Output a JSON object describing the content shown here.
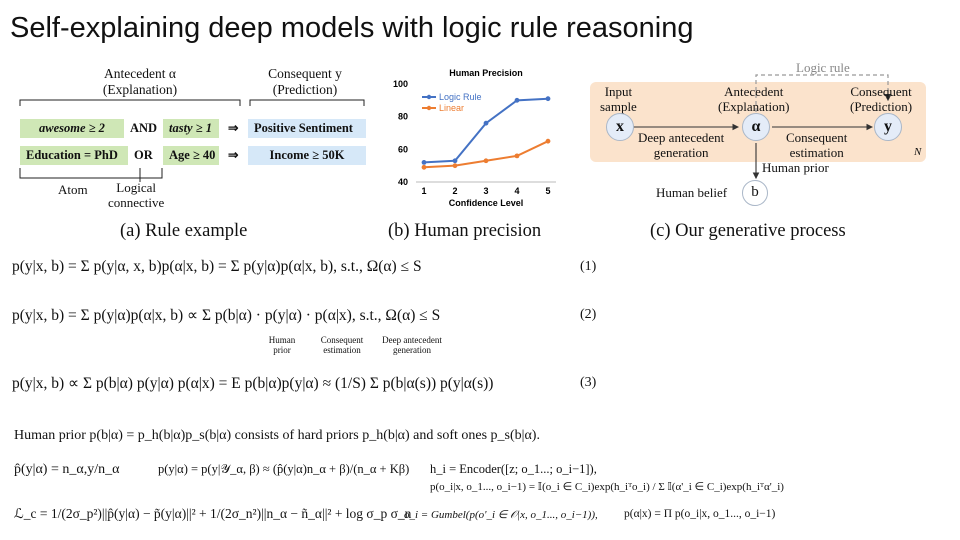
{
  "title": "Self-explaining deep models with logic rule reasoning",
  "rule_example": {
    "antecedent_header": [
      "Antecedent α",
      "(Explanation)"
    ],
    "consequent_header": [
      "Consequent y",
      "(Prediction)"
    ],
    "row1": {
      "atom1": "awesome ≥ 2",
      "connective": "AND",
      "atom2": "tasty ≥ 1",
      "arrow": "⇒",
      "consequent": "Positive Sentiment"
    },
    "row2": {
      "atom1": "Education = PhD",
      "connective": "OR",
      "atom2": "Age ≥ 40",
      "arrow": "⇒",
      "consequent": "Income ≥ 50K"
    },
    "atom_label": "Atom",
    "connective_label": [
      "Logical",
      "connective"
    ],
    "caption": "(a) Rule example"
  },
  "colors": {
    "green": "#cfe7b6",
    "blue_box": "#d6e8f8",
    "orange_bg": "#fbe3cc",
    "logic_rule_line": "#4472c4",
    "linear_line": "#ed7d31"
  },
  "chart_data": {
    "type": "line",
    "title": "Human Precision",
    "xlabel": "Confidence Level",
    "ylabel": "",
    "x": [
      1,
      2,
      3,
      4,
      5
    ],
    "ylim": [
      40,
      100
    ],
    "yticks": [
      40,
      60,
      80,
      100
    ],
    "series": [
      {
        "name": "Logic Rule",
        "values": [
          52,
          53,
          76,
          90,
          91
        ]
      },
      {
        "name": "Linear",
        "values": [
          49,
          50,
          53,
          56,
          65
        ]
      }
    ],
    "legend": "top-left",
    "caption": "(b) Human precision"
  },
  "process": {
    "logic_rule_label": "Logic rule",
    "input_label": [
      "Input",
      "sample"
    ],
    "antecedent_label": [
      "Antecedent",
      "(Explanation)"
    ],
    "consequent_label": [
      "Consequent",
      "(Prediction)"
    ],
    "node_x": "x",
    "node_alpha": "α",
    "node_y": "y",
    "node_b": "b",
    "deep_gen_label": [
      "Deep antecedent",
      "generation"
    ],
    "cons_est_label": [
      "Consequent",
      "estimation"
    ],
    "human_prior_label": "Human prior",
    "human_belief_label": "Human belief",
    "plate_label": "N",
    "caption": "(c) Our generative process"
  },
  "equations": {
    "eq1": "p(y|x, b) = Σ p(y|α, x, b)p(α|x, b) = Σ p(y|α)p(α|x, b),   s.t.,   Ω(α) ≤ S",
    "eq1_num": "(1)",
    "eq2": "p(y|x, b) = Σ p(y|α)p(α|x, b) ∝ Σ p(b|α) · p(y|α) · p(α|x),   s.t.,   Ω(α) ≤ S",
    "eq2_num": "(2)",
    "eq2_under": [
      "Human prior",
      "Consequent estimation",
      "Deep antecedent generation"
    ],
    "eq3": "p(y|x, b) ∝ Σ p(b|α) p(y|α) p(α|x) = E p(b|α)p(y|α) ≈ (1/S) Σ p(b|α(s)) p(y|α(s))",
    "eq3_num": "(3)",
    "prior_sentence": "Human prior p(b|α) = p_h(b|α)p_s(b|α) consists of hard priors p_h(b|α) and soft ones p_s(b|α).",
    "eq_phat": "p̂(y|α) = n_α,y/n_α",
    "eq_ptilde": "p(y|α) = p(y|𝒴_α, β) ≈ (p̂(y|α)n_α + β)/(n_α + Kβ)",
    "eq_h": "h_i = Encoder([z; o_1...; o_i−1]),",
    "eq_po": "p(o_i|x, o_1..., o_i−1) = 𝕀(o_i ∈ C_i)exp(h_iᵀo_i) / Σ 𝕀(α'_i ∈ C_i)exp(h_iᵀα'_i)",
    "eq_lc": "ℒ_c = 1/(2σ_p²)||p̂(y|α) − p̃(y|α)||² + 1/(2σ_n²)||n_α − ñ_α||² + log σ_p σ_n",
    "eq_gumbel": "o_i = Gumbel(p(o'_i ∈ 𝒪|x, o_1..., o_i−1)),",
    "eq_palpha": "p(α|x) = Π p(o_i|x, o_1..., o_i−1)"
  }
}
